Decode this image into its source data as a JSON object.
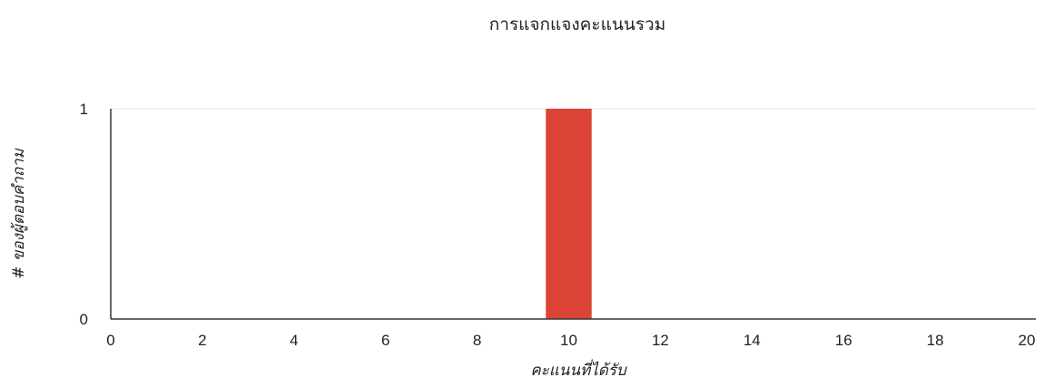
{
  "chart_data": {
    "type": "bar",
    "title": "การแจกแจงคะแนนรวม",
    "xlabel": "คะแนนที่ได้รับ",
    "ylabel": "# ของผู้ตอบคำถาม",
    "xlim": [
      0,
      20
    ],
    "ylim": [
      0,
      1
    ],
    "x_ticks": [
      0,
      2,
      4,
      6,
      8,
      10,
      12,
      14,
      16,
      18,
      20
    ],
    "y_ticks": [
      0,
      1
    ],
    "categories": [
      10
    ],
    "values": [
      1
    ],
    "bar_color": "#db4437",
    "grid": true,
    "legend": "none"
  }
}
